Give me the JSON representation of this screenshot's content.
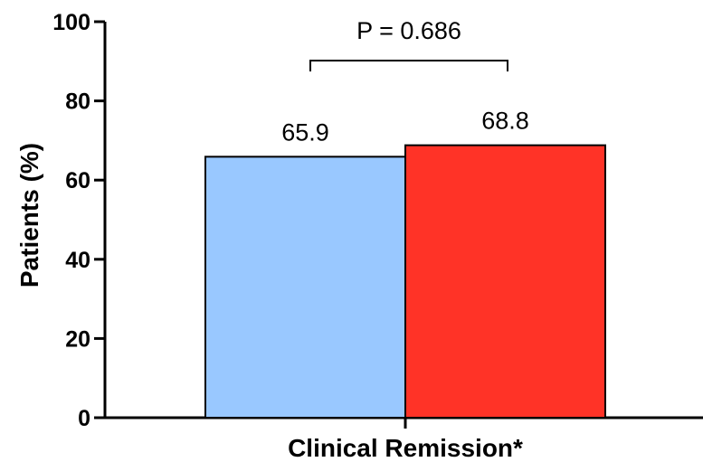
{
  "chart_data": {
    "type": "bar",
    "categories": [
      "Clinical Remission*"
    ],
    "series": [
      {
        "values": [
          65.9
        ],
        "color": "#99c8ff",
        "data_label": "65.9"
      },
      {
        "values": [
          68.8
        ],
        "color": "#ff3327",
        "data_label": "68.8"
      }
    ],
    "ylabel": "Patients (%)",
    "xlabel": "Clinical Remission*",
    "ylim": [
      0,
      100
    ],
    "yticks": [
      0,
      20,
      40,
      60,
      80,
      100
    ],
    "grid": false,
    "annotation": {
      "text": "P = 0.686",
      "between": [
        0,
        1
      ]
    }
  }
}
